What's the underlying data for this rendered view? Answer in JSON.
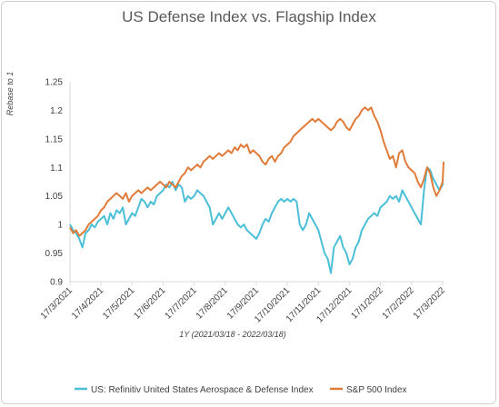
{
  "chart_data": {
    "type": "line",
    "title": "US Defense Index vs. Flagship Index",
    "ylabel": "Rebase to 1",
    "xlabel": "1Y (2021/03/18 - 2022/03/18)",
    "ylim": [
      0.9,
      1.25
    ],
    "yticks": [
      "0.9",
      "0.95",
      "1",
      "1.05",
      "1.1",
      "1.15",
      "1.2",
      "1.25"
    ],
    "xticks": [
      "17/3/2021",
      "17/4/2021",
      "17/5/2021",
      "17/6/2021",
      "17/7/2021",
      "17/8/2021",
      "17/9/2021",
      "17/10/2021",
      "17/11/2021",
      "17/12/2021",
      "17/1/2022",
      "17/2/2022",
      "17/3/2022"
    ],
    "x_range_months": [
      0,
      12.03
    ],
    "grid": false,
    "legend_position": "bottom",
    "series": [
      {
        "name": "US: Refinitiv United States Aerospace & Defense Index",
        "color": "#4BBFD8",
        "points": [
          [
            0.0,
            1.0
          ],
          [
            0.1,
            0.99
          ],
          [
            0.2,
            0.985
          ],
          [
            0.3,
            0.975
          ],
          [
            0.4,
            0.96
          ],
          [
            0.5,
            0.985
          ],
          [
            0.6,
            0.99
          ],
          [
            0.7,
            1.0
          ],
          [
            0.8,
            0.995
          ],
          [
            0.9,
            1.005
          ],
          [
            1.0,
            1.01
          ],
          [
            1.1,
            1.015
          ],
          [
            1.2,
            1.0
          ],
          [
            1.3,
            1.02
          ],
          [
            1.4,
            1.01
          ],
          [
            1.5,
            1.025
          ],
          [
            1.6,
            1.02
          ],
          [
            1.7,
            1.03
          ],
          [
            1.8,
            1.0
          ],
          [
            1.9,
            1.01
          ],
          [
            2.0,
            1.02
          ],
          [
            2.1,
            1.015
          ],
          [
            2.2,
            1.03
          ],
          [
            2.3,
            1.045
          ],
          [
            2.4,
            1.04
          ],
          [
            2.5,
            1.03
          ],
          [
            2.6,
            1.04
          ],
          [
            2.7,
            1.035
          ],
          [
            2.8,
            1.05
          ],
          [
            2.9,
            1.055
          ],
          [
            3.0,
            1.06
          ],
          [
            3.1,
            1.07
          ],
          [
            3.2,
            1.065
          ],
          [
            3.3,
            1.075
          ],
          [
            3.4,
            1.06
          ],
          [
            3.5,
            1.07
          ],
          [
            3.6,
            1.065
          ],
          [
            3.7,
            1.04
          ],
          [
            3.8,
            1.05
          ],
          [
            3.9,
            1.045
          ],
          [
            4.0,
            1.05
          ],
          [
            4.1,
            1.06
          ],
          [
            4.2,
            1.055
          ],
          [
            4.3,
            1.05
          ],
          [
            4.4,
            1.04
          ],
          [
            4.5,
            1.03
          ],
          [
            4.6,
            1.0
          ],
          [
            4.7,
            1.01
          ],
          [
            4.8,
            1.02
          ],
          [
            4.9,
            1.01
          ],
          [
            5.0,
            1.02
          ],
          [
            5.1,
            1.03
          ],
          [
            5.2,
            1.02
          ],
          [
            5.3,
            1.01
          ],
          [
            5.4,
            1.0
          ],
          [
            5.5,
            0.995
          ],
          [
            5.6,
            1.0
          ],
          [
            5.7,
            0.99
          ],
          [
            5.8,
            0.985
          ],
          [
            5.9,
            0.98
          ],
          [
            6.0,
            0.975
          ],
          [
            6.1,
            0.985
          ],
          [
            6.2,
            1.0
          ],
          [
            6.3,
            1.01
          ],
          [
            6.4,
            1.005
          ],
          [
            6.5,
            1.02
          ],
          [
            6.6,
            1.03
          ],
          [
            6.7,
            1.04
          ],
          [
            6.8,
            1.045
          ],
          [
            6.9,
            1.04
          ],
          [
            7.0,
            1.045
          ],
          [
            7.1,
            1.04
          ],
          [
            7.2,
            1.045
          ],
          [
            7.3,
            1.04
          ],
          [
            7.4,
            1.0
          ],
          [
            7.5,
            0.99
          ],
          [
            7.6,
            1.0
          ],
          [
            7.7,
            1.02
          ],
          [
            7.8,
            1.01
          ],
          [
            7.9,
            1.0
          ],
          [
            8.0,
            0.99
          ],
          [
            8.1,
            0.97
          ],
          [
            8.2,
            0.95
          ],
          [
            8.3,
            0.94
          ],
          [
            8.4,
            0.915
          ],
          [
            8.5,
            0.96
          ],
          [
            8.6,
            0.97
          ],
          [
            8.7,
            0.98
          ],
          [
            8.8,
            0.96
          ],
          [
            8.9,
            0.95
          ],
          [
            9.0,
            0.93
          ],
          [
            9.1,
            0.94
          ],
          [
            9.2,
            0.96
          ],
          [
            9.3,
            0.97
          ],
          [
            9.4,
            0.99
          ],
          [
            9.5,
            1.0
          ],
          [
            9.6,
            1.01
          ],
          [
            9.7,
            1.015
          ],
          [
            9.8,
            1.02
          ],
          [
            9.9,
            1.015
          ],
          [
            10.0,
            1.03
          ],
          [
            10.1,
            1.035
          ],
          [
            10.2,
            1.04
          ],
          [
            10.3,
            1.05
          ],
          [
            10.4,
            1.045
          ],
          [
            10.5,
            1.05
          ],
          [
            10.6,
            1.04
          ],
          [
            10.7,
            1.06
          ],
          [
            10.8,
            1.05
          ],
          [
            10.9,
            1.04
          ],
          [
            11.0,
            1.03
          ],
          [
            11.1,
            1.02
          ],
          [
            11.2,
            1.01
          ],
          [
            11.3,
            1.0
          ],
          [
            11.4,
            1.06
          ],
          [
            11.5,
            1.1
          ],
          [
            11.6,
            1.095
          ],
          [
            11.7,
            1.08
          ],
          [
            11.8,
            1.07
          ],
          [
            11.9,
            1.06
          ],
          [
            12.0,
            1.07
          ],
          [
            12.03,
            1.072
          ]
        ]
      },
      {
        "name": "S&P 500 Index",
        "color": "#E07B39",
        "points": [
          [
            0.0,
            0.995
          ],
          [
            0.1,
            0.985
          ],
          [
            0.2,
            0.99
          ],
          [
            0.3,
            0.98
          ],
          [
            0.4,
            0.985
          ],
          [
            0.5,
            0.99
          ],
          [
            0.6,
            1.0
          ],
          [
            0.7,
            1.005
          ],
          [
            0.8,
            1.01
          ],
          [
            0.9,
            1.015
          ],
          [
            1.0,
            1.025
          ],
          [
            1.1,
            1.03
          ],
          [
            1.2,
            1.04
          ],
          [
            1.3,
            1.045
          ],
          [
            1.4,
            1.05
          ],
          [
            1.5,
            1.055
          ],
          [
            1.6,
            1.05
          ],
          [
            1.7,
            1.045
          ],
          [
            1.8,
            1.055
          ],
          [
            1.9,
            1.04
          ],
          [
            2.0,
            1.05
          ],
          [
            2.1,
            1.055
          ],
          [
            2.2,
            1.06
          ],
          [
            2.3,
            1.055
          ],
          [
            2.4,
            1.06
          ],
          [
            2.5,
            1.065
          ],
          [
            2.6,
            1.06
          ],
          [
            2.7,
            1.065
          ],
          [
            2.8,
            1.07
          ],
          [
            2.9,
            1.075
          ],
          [
            3.0,
            1.07
          ],
          [
            3.1,
            1.065
          ],
          [
            3.2,
            1.075
          ],
          [
            3.3,
            1.07
          ],
          [
            3.4,
            1.065
          ],
          [
            3.5,
            1.075
          ],
          [
            3.6,
            1.085
          ],
          [
            3.7,
            1.09
          ],
          [
            3.8,
            1.1
          ],
          [
            3.9,
            1.095
          ],
          [
            4.0,
            1.1
          ],
          [
            4.1,
            1.105
          ],
          [
            4.2,
            1.1
          ],
          [
            4.3,
            1.11
          ],
          [
            4.4,
            1.115
          ],
          [
            4.5,
            1.12
          ],
          [
            4.6,
            1.115
          ],
          [
            4.7,
            1.12
          ],
          [
            4.8,
            1.125
          ],
          [
            4.9,
            1.12
          ],
          [
            5.0,
            1.125
          ],
          [
            5.1,
            1.13
          ],
          [
            5.2,
            1.125
          ],
          [
            5.3,
            1.135
          ],
          [
            5.4,
            1.13
          ],
          [
            5.5,
            1.14
          ],
          [
            5.6,
            1.135
          ],
          [
            5.7,
            1.14
          ],
          [
            5.8,
            1.125
          ],
          [
            5.9,
            1.13
          ],
          [
            6.0,
            1.125
          ],
          [
            6.1,
            1.12
          ],
          [
            6.2,
            1.11
          ],
          [
            6.3,
            1.105
          ],
          [
            6.4,
            1.115
          ],
          [
            6.5,
            1.12
          ],
          [
            6.6,
            1.11
          ],
          [
            6.7,
            1.12
          ],
          [
            6.8,
            1.125
          ],
          [
            6.9,
            1.135
          ],
          [
            7.0,
            1.14
          ],
          [
            7.1,
            1.145
          ],
          [
            7.2,
            1.155
          ],
          [
            7.3,
            1.16
          ],
          [
            7.4,
            1.165
          ],
          [
            7.5,
            1.17
          ],
          [
            7.6,
            1.175
          ],
          [
            7.7,
            1.18
          ],
          [
            7.8,
            1.185
          ],
          [
            7.9,
            1.18
          ],
          [
            8.0,
            1.185
          ],
          [
            8.1,
            1.18
          ],
          [
            8.2,
            1.175
          ],
          [
            8.3,
            1.17
          ],
          [
            8.4,
            1.165
          ],
          [
            8.5,
            1.17
          ],
          [
            8.6,
            1.18
          ],
          [
            8.7,
            1.185
          ],
          [
            8.8,
            1.18
          ],
          [
            8.9,
            1.17
          ],
          [
            9.0,
            1.165
          ],
          [
            9.1,
            1.175
          ],
          [
            9.2,
            1.185
          ],
          [
            9.3,
            1.19
          ],
          [
            9.4,
            1.2
          ],
          [
            9.5,
            1.205
          ],
          [
            9.6,
            1.2
          ],
          [
            9.7,
            1.205
          ],
          [
            9.8,
            1.19
          ],
          [
            9.9,
            1.18
          ],
          [
            10.0,
            1.165
          ],
          [
            10.1,
            1.145
          ],
          [
            10.2,
            1.13
          ],
          [
            10.3,
            1.115
          ],
          [
            10.4,
            1.12
          ],
          [
            10.5,
            1.1
          ],
          [
            10.6,
            1.125
          ],
          [
            10.7,
            1.13
          ],
          [
            10.8,
            1.11
          ],
          [
            10.9,
            1.1
          ],
          [
            11.0,
            1.095
          ],
          [
            11.1,
            1.09
          ],
          [
            11.2,
            1.075
          ],
          [
            11.3,
            1.065
          ],
          [
            11.4,
            1.08
          ],
          [
            11.5,
            1.1
          ],
          [
            11.6,
            1.09
          ],
          [
            11.7,
            1.065
          ],
          [
            11.8,
            1.05
          ],
          [
            11.9,
            1.06
          ],
          [
            12.0,
            1.075
          ],
          [
            12.03,
            1.11
          ]
        ]
      }
    ]
  }
}
